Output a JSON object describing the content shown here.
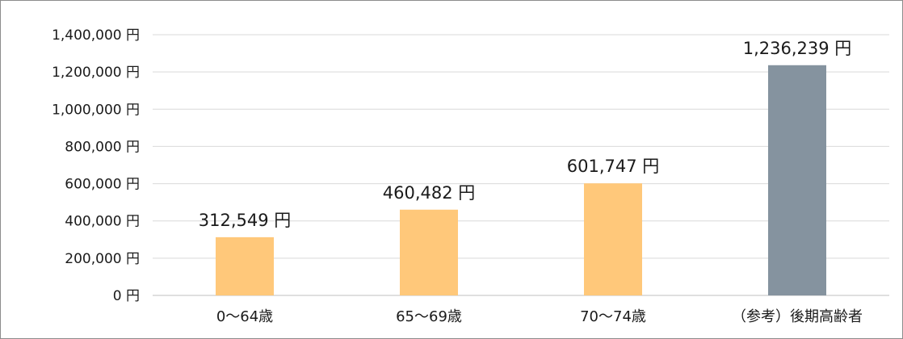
{
  "chart_data": {
    "type": "bar",
    "title": "",
    "xlabel": "",
    "ylabel": "",
    "categories": [
      "0～64歳",
      "65～69歳",
      "70～74歳",
      "（参考）後期高齢者"
    ],
    "values": [
      312549,
      460482,
      601747,
      1236239
    ],
    "data_labels": [
      "312,549 円",
      "460,482 円",
      "601,747 円",
      "1,236,239 円"
    ],
    "ylim": [
      0,
      1400000
    ],
    "y_ticks": [
      0,
      200000,
      400000,
      600000,
      800000,
      1000000,
      1200000,
      1400000
    ],
    "y_tick_labels": [
      "0 円",
      "200,000 円",
      "400,000 円",
      "600,000 円",
      "800,000 円",
      "1,000,000 円",
      "1,200,000 円",
      "1,400,000 円"
    ],
    "bar_colors": [
      "#ffc87a",
      "#ffc87a",
      "#ffc87a",
      "#85939f"
    ],
    "grid": true,
    "legend": "none"
  }
}
